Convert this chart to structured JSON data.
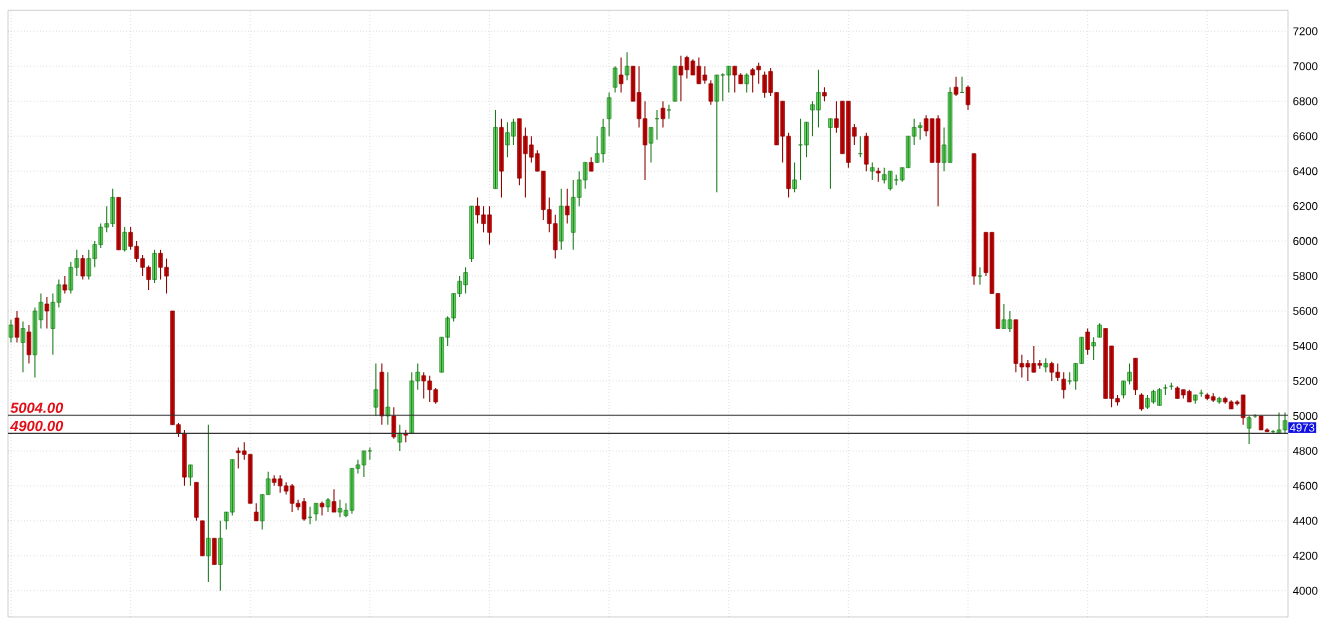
{
  "chart_data": {
    "type": "candlestick",
    "categories": [
      null,
      null,
      null,
      null,
      null,
      null,
      null,
      null,
      null,
      null,
      null,
      null,
      null,
      null,
      null,
      null,
      null,
      null,
      null,
      null,
      null,
      null,
      null,
      null,
      null,
      null,
      null,
      null,
      null,
      null,
      null,
      null,
      null,
      null,
      null,
      null,
      null,
      null,
      null,
      null,
      null,
      null,
      null,
      null,
      null,
      null,
      null,
      null,
      null,
      null,
      null,
      null,
      null,
      null,
      null,
      null,
      null,
      null,
      null,
      null,
      null,
      null,
      null,
      null,
      null,
      null,
      null,
      null,
      null,
      null,
      null,
      null,
      null,
      null,
      null,
      null,
      null,
      null,
      null,
      null,
      null,
      null,
      null,
      null,
      null,
      null,
      null,
      null,
      null,
      null,
      null,
      null,
      null,
      null,
      null,
      null,
      null,
      null,
      null,
      null,
      null,
      null,
      null,
      null,
      null,
      null,
      null,
      null,
      null,
      null,
      null,
      null,
      null,
      null,
      null,
      null,
      null,
      null,
      null,
      null,
      null,
      null,
      null,
      null,
      null,
      null,
      null,
      null,
      null,
      null,
      null,
      null,
      null,
      null,
      null,
      null,
      null,
      null,
      null,
      null,
      null,
      null,
      null,
      null,
      null,
      null,
      null,
      null,
      null,
      null,
      null,
      null,
      null,
      null,
      null,
      null,
      null,
      null,
      null,
      null,
      null,
      null,
      null,
      null,
      null,
      null,
      null,
      null,
      null,
      null,
      null,
      null,
      null,
      null,
      null,
      null,
      null,
      null,
      null,
      null,
      null,
      null,
      null,
      null,
      null,
      null,
      null,
      null,
      null,
      null,
      null,
      null,
      null,
      null,
      null,
      null,
      null,
      null,
      null,
      null,
      null,
      null,
      null,
      null,
      null,
      null,
      null,
      null,
      null,
      null,
      null,
      null,
      null,
      null
    ],
    "ohlc": [
      [
        5450,
        5550,
        5420,
        5520
      ],
      [
        5560,
        5600,
        5420,
        5450
      ],
      [
        5420,
        5540,
        5250,
        5500
      ],
      [
        5480,
        5520,
        5300,
        5350
      ],
      [
        5350,
        5620,
        5220,
        5600
      ],
      [
        5550,
        5700,
        5500,
        5650
      ],
      [
        5640,
        5680,
        5500,
        5600
      ],
      [
        5500,
        5700,
        5350,
        5650
      ],
      [
        5650,
        5780,
        5620,
        5750
      ],
      [
        5750,
        5800,
        5700,
        5720
      ],
      [
        5720,
        5880,
        5700,
        5850
      ],
      [
        5850,
        5950,
        5800,
        5900
      ],
      [
        5900,
        5920,
        5780,
        5800
      ],
      [
        5800,
        5950,
        5780,
        5900
      ],
      [
        5900,
        6000,
        5850,
        5980
      ],
      [
        5980,
        6100,
        5960,
        6080
      ],
      [
        6080,
        6200,
        6050,
        6100
      ],
      [
        6100,
        6300,
        6080,
        6250
      ],
      [
        6250,
        6250,
        5950,
        5950
      ],
      [
        5950,
        6080,
        5940,
        6050
      ],
      [
        6050,
        6080,
        5950,
        5970
      ],
      [
        5970,
        6000,
        5880,
        5900
      ],
      [
        5900,
        5920,
        5800,
        5850
      ],
      [
        5850,
        5860,
        5720,
        5780
      ],
      [
        5780,
        5950,
        5760,
        5930
      ],
      [
        5930,
        5950,
        5780,
        5850
      ],
      [
        5850,
        5900,
        5700,
        5800
      ],
      [
        5600,
        5600,
        4950,
        4950
      ],
      [
        4950,
        4960,
        4880,
        4900
      ],
      [
        4900,
        4920,
        4600,
        4650
      ],
      [
        4650,
        4720,
        4600,
        4720
      ],
      [
        4620,
        4620,
        4400,
        4420
      ],
      [
        4400,
        4400,
        4200,
        4200
      ],
      [
        4200,
        4950,
        4050,
        4300
      ],
      [
        4300,
        4300,
        4150,
        4150
      ],
      [
        4150,
        4400,
        4000,
        4300
      ],
      [
        4400,
        4450,
        4350,
        4450
      ],
      [
        4450,
        4750,
        4430,
        4750
      ],
      [
        4800,
        4820,
        4700,
        4790
      ],
      [
        4800,
        4850,
        4750,
        4780
      ],
      [
        4780,
        4780,
        4500,
        4500
      ],
      [
        4450,
        4500,
        4400,
        4400
      ],
      [
        4400,
        4550,
        4350,
        4550
      ],
      [
        4550,
        4680,
        4550,
        4640
      ],
      [
        4640,
        4660,
        4600,
        4620
      ],
      [
        4640,
        4660,
        4560,
        4600
      ],
      [
        4600,
        4620,
        4550,
        4570
      ],
      [
        4600,
        4610,
        4450,
        4500
      ],
      [
        4500,
        4520,
        4460,
        4480
      ],
      [
        4510,
        4530,
        4400,
        4410
      ],
      [
        4420,
        4480,
        4380,
        4420
      ],
      [
        4440,
        4500,
        4400,
        4500
      ],
      [
        4500,
        4510,
        4430,
        4480
      ],
      [
        4480,
        4530,
        4450,
        4520
      ],
      [
        4510,
        4580,
        4450,
        4450
      ],
      [
        4450,
        4520,
        4420,
        4470
      ],
      [
        4430,
        4500,
        4420,
        4460
      ],
      [
        4460,
        4700,
        4440,
        4700
      ],
      [
        4700,
        4750,
        4670,
        4720
      ],
      [
        4720,
        4800,
        4650,
        4800
      ],
      [
        4800,
        4820,
        4750,
        4800
      ],
      [
        5050,
        5300,
        5000,
        5150
      ],
      [
        5250,
        5300,
        4950,
        5000
      ],
      [
        5000,
        5250,
        4950,
        5050
      ],
      [
        5000,
        5050,
        4870,
        4880
      ],
      [
        4850,
        4950,
        4800,
        4900
      ],
      [
        4900,
        4920,
        4850,
        4890
      ],
      [
        4900,
        5250,
        4900,
        5200
      ],
      [
        5200,
        5300,
        5150,
        5250
      ],
      [
        5230,
        5250,
        5100,
        5200
      ],
      [
        5200,
        5230,
        5080,
        5150
      ],
      [
        5150,
        5160,
        5070,
        5080
      ],
      [
        5250,
        5450,
        5250,
        5450
      ],
      [
        5450,
        5570,
        5400,
        5560
      ],
      [
        5560,
        5700,
        5540,
        5700
      ],
      [
        5700,
        5800,
        5680,
        5770
      ],
      [
        5750,
        5850,
        5700,
        5820
      ],
      [
        5900,
        6200,
        5880,
        6200
      ],
      [
        6200,
        6250,
        6100,
        6150
      ],
      [
        6150,
        6200,
        6050,
        6100
      ],
      [
        6150,
        6200,
        5980,
        6050
      ],
      [
        6300,
        6750,
        6300,
        6650
      ],
      [
        6650,
        6700,
        6250,
        6400
      ],
      [
        6550,
        6680,
        6480,
        6620
      ],
      [
        6600,
        6700,
        6550,
        6680
      ],
      [
        6700,
        6700,
        6320,
        6360
      ],
      [
        6600,
        6650,
        6250,
        6500
      ],
      [
        6550,
        6600,
        6450,
        6480
      ],
      [
        6500,
        6520,
        6400,
        6400
      ],
      [
        6400,
        6400,
        6120,
        6180
      ],
      [
        6180,
        6250,
        6050,
        6100
      ],
      [
        6100,
        6150,
        5900,
        5950
      ],
      [
        6000,
        6300,
        5950,
        6200
      ],
      [
        6200,
        6300,
        6100,
        6150
      ],
      [
        6050,
        6350,
        5950,
        6250
      ],
      [
        6250,
        6400,
        6200,
        6350
      ],
      [
        6350,
        6450,
        6300,
        6450
      ],
      [
        6450,
        6480,
        6400,
        6400
      ],
      [
        6450,
        6600,
        6450,
        6500
      ],
      [
        6500,
        6700,
        6450,
        6650
      ],
      [
        6700,
        6850,
        6600,
        6820
      ],
      [
        6880,
        7000,
        6850,
        6990
      ],
      [
        6950,
        7050,
        6850,
        6900
      ],
      [
        6950,
        7080,
        6920,
        7000
      ],
      [
        7000,
        7000,
        6800,
        6800
      ],
      [
        6850,
        7000,
        6650,
        6700
      ],
      [
        6700,
        6800,
        6350,
        6550
      ],
      [
        6560,
        6650,
        6450,
        6650
      ],
      [
        6700,
        6750,
        6580,
        6700
      ],
      [
        6760,
        6800,
        6650,
        6700
      ],
      [
        6750,
        6780,
        6700,
        6750
      ],
      [
        6800,
        7000,
        6800,
        7000
      ],
      [
        7000,
        7060,
        6800,
        6950
      ],
      [
        7050,
        7060,
        6930,
        6980
      ],
      [
        7030,
        7040,
        6950,
        6950
      ],
      [
        7000,
        7050,
        6900,
        6900
      ],
      [
        6950,
        7000,
        6900,
        6920
      ],
      [
        6900,
        6920,
        6780,
        6800
      ],
      [
        6800,
        6950,
        6280,
        6950
      ],
      [
        6950,
        6960,
        6800,
        6950
      ],
      [
        6950,
        7000,
        6850,
        7000
      ],
      [
        7000,
        7000,
        6850,
        6950
      ],
      [
        6950,
        6960,
        6900,
        6900
      ],
      [
        6900,
        6960,
        6850,
        6950
      ],
      [
        6980,
        6990,
        6850,
        6950
      ],
      [
        7000,
        7020,
        6900,
        6980
      ],
      [
        6950,
        6970,
        6820,
        6850
      ],
      [
        6970,
        6990,
        6830,
        6850
      ],
      [
        6850,
        6850,
        6550,
        6550
      ],
      [
        6800,
        6800,
        6450,
        6600
      ],
      [
        6600,
        6620,
        6250,
        6300
      ],
      [
        6300,
        6450,
        6280,
        6350
      ],
      [
        6550,
        6700,
        6350,
        6550
      ],
      [
        6550,
        6680,
        6480,
        6680
      ],
      [
        6750,
        6800,
        6600,
        6780
      ],
      [
        6750,
        6980,
        6650,
        6850
      ],
      [
        6850,
        6880,
        6800,
        6830
      ],
      [
        6650,
        6700,
        6300,
        6700
      ],
      [
        6700,
        6800,
        6620,
        6650
      ],
      [
        6800,
        6800,
        6500,
        6500
      ],
      [
        6800,
        6800,
        6420,
        6450
      ],
      [
        6650,
        6670,
        6550,
        6600
      ],
      [
        6500,
        6600,
        6480,
        6500
      ],
      [
        6600,
        6620,
        6400,
        6440
      ],
      [
        6400,
        6450,
        6350,
        6420
      ],
      [
        6400,
        6420,
        6340,
        6390
      ],
      [
        6350,
        6420,
        6330,
        6380
      ],
      [
        6300,
        6400,
        6290,
        6400
      ],
      [
        6350,
        6380,
        6320,
        6350
      ],
      [
        6350,
        6420,
        6340,
        6420
      ],
      [
        6420,
        6600,
        6420,
        6600
      ],
      [
        6600,
        6700,
        6550,
        6650
      ],
      [
        6650,
        6680,
        6580,
        6660
      ],
      [
        6700,
        6720,
        6600,
        6630
      ],
      [
        6700,
        6700,
        6450,
        6450
      ],
      [
        6700,
        6720,
        6200,
        6450
      ],
      [
        6450,
        6650,
        6400,
        6550
      ],
      [
        6450,
        6880,
        6450,
        6850
      ],
      [
        6880,
        6940,
        6830,
        6840
      ],
      [
        6850,
        6940,
        6850,
        6850
      ],
      [
        6880,
        6890,
        6750,
        6780
      ],
      [
        6500,
        6500,
        5750,
        5800
      ],
      [
        5800,
        5850,
        5750,
        5800
      ],
      [
        6050,
        6050,
        5800,
        5820
      ],
      [
        6050,
        6050,
        5700,
        5700
      ],
      [
        5700,
        5700,
        5500,
        5500
      ],
      [
        5500,
        5640,
        5500,
        5550
      ],
      [
        5500,
        5600,
        5480,
        5550
      ],
      [
        5550,
        5550,
        5250,
        5300
      ],
      [
        5300,
        5350,
        5220,
        5280
      ],
      [
        5300,
        5320,
        5200,
        5280
      ],
      [
        5300,
        5400,
        5250,
        5250
      ],
      [
        5300,
        5320,
        5270,
        5290
      ],
      [
        5280,
        5330,
        5250,
        5300
      ],
      [
        5300,
        5310,
        5200,
        5250
      ],
      [
        5250,
        5300,
        5200,
        5220
      ],
      [
        5210,
        5250,
        5100,
        5150
      ],
      [
        5200,
        5250,
        5180,
        5200
      ],
      [
        5200,
        5300,
        5150,
        5300
      ],
      [
        5300,
        5450,
        5300,
        5450
      ],
      [
        5480,
        5500,
        5350,
        5380
      ],
      [
        5400,
        5450,
        5320,
        5420
      ],
      [
        5450,
        5530,
        5450,
        5520
      ],
      [
        5500,
        5500,
        5100,
        5100
      ],
      [
        5400,
        5400,
        5050,
        5100
      ],
      [
        5100,
        5120,
        5060,
        5080
      ],
      [
        5120,
        5200,
        5100,
        5200
      ],
      [
        5200,
        5300,
        5180,
        5250
      ],
      [
        5330,
        5330,
        5120,
        5150
      ],
      [
        5120,
        5130,
        5030,
        5040
      ],
      [
        5050,
        5120,
        5040,
        5100
      ],
      [
        5080,
        5150,
        5070,
        5140
      ],
      [
        5060,
        5160,
        5060,
        5150
      ],
      [
        5160,
        5180,
        5120,
        5160
      ],
      [
        5170,
        5190,
        5150,
        5170
      ],
      [
        5160,
        5170,
        5100,
        5100
      ],
      [
        5150,
        5150,
        5100,
        5120
      ],
      [
        5140,
        5150,
        5080,
        5080
      ],
      [
        5090,
        5120,
        5070,
        5120
      ],
      [
        5130,
        5150,
        5110,
        5130
      ],
      [
        5120,
        5130,
        5090,
        5100
      ],
      [
        5110,
        5130,
        5080,
        5090
      ],
      [
        5080,
        5110,
        5070,
        5100
      ],
      [
        5100,
        5110,
        5070,
        5080
      ],
      [
        5080,
        5090,
        5040,
        5040
      ],
      [
        5080,
        5090,
        5060,
        5070
      ],
      [
        5120,
        5120,
        4950,
        4990
      ],
      [
        4930,
        5000,
        4840,
        4990
      ],
      [
        5000,
        5010,
        4990,
        5000
      ],
      [
        5000,
        5000,
        4920,
        4920
      ],
      [
        4920,
        4930,
        4910,
        4910
      ],
      [
        4910,
        4920,
        4900,
        4910
      ],
      [
        4900,
        5020,
        4900,
        4920
      ],
      [
        4920,
        5020,
        4900,
        4973
      ]
    ],
    "ylim": [
      3850,
      7320
    ],
    "yticks": [
      4000,
      4200,
      4400,
      4600,
      4800,
      5000,
      5200,
      5400,
      5600,
      5800,
      6000,
      6200,
      6400,
      6600,
      6800,
      7000,
      7200
    ],
    "grid": true,
    "ref_lines": [
      {
        "axis": "y",
        "value": 5004,
        "label": "5004.00",
        "color": "#333333"
      },
      {
        "axis": "y",
        "value": 4900,
        "label": "4900.00",
        "color": "#333333"
      }
    ],
    "annotations": [
      "4973"
    ]
  }
}
